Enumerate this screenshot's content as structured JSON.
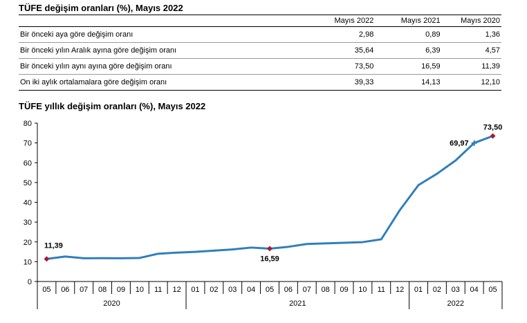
{
  "table": {
    "title": "TÜFE değişim oranları (%), Mayıs 2022",
    "columns": [
      "Mayıs 2022",
      "Mayıs 2021",
      "Mayıs 2020"
    ],
    "rows": [
      {
        "label": "Bir önceki aya göre değişim oranı",
        "values": [
          "2,98",
          "0,89",
          "1,36"
        ]
      },
      {
        "label": "Bir önceki yılın Aralık ayına göre değişim oranı",
        "values": [
          "35,64",
          "6,39",
          "4,57"
        ]
      },
      {
        "label": "Bir önceki yılın aynı ayına göre değişim oranı",
        "values": [
          "73,50",
          "16,59",
          "11,39"
        ]
      },
      {
        "label": "On iki aylık ortalamalara göre değişim oranı",
        "values": [
          "39,33",
          "14,13",
          "12,10"
        ]
      }
    ]
  },
  "chart_data": {
    "type": "line",
    "title": "TÜFE yıllık değişim oranları (%), Mayıs 2022",
    "categories": [
      "05",
      "06",
      "07",
      "08",
      "09",
      "10",
      "11",
      "12",
      "01",
      "02",
      "03",
      "04",
      "05",
      "06",
      "07",
      "08",
      "09",
      "10",
      "11",
      "12",
      "01",
      "02",
      "03",
      "04",
      "05"
    ],
    "years": [
      {
        "label": "2020",
        "count": 8
      },
      {
        "label": "2021",
        "count": 12
      },
      {
        "label": "2022",
        "count": 5
      }
    ],
    "values": [
      11.39,
      12.62,
      11.76,
      11.77,
      11.75,
      11.89,
      14.03,
      14.6,
      14.97,
      15.61,
      16.19,
      17.14,
      16.59,
      17.53,
      18.95,
      19.25,
      19.58,
      19.89,
      21.31,
      36.08,
      48.69,
      54.44,
      61.14,
      69.97,
      73.5
    ],
    "ylim": [
      0,
      80
    ],
    "yticks": [
      0,
      10,
      20,
      30,
      40,
      50,
      60,
      70,
      80
    ],
    "markers": [
      {
        "index": 0,
        "label": "11,39",
        "shape": "diamond"
      },
      {
        "index": 12,
        "label": "16,59",
        "shape": "diamond"
      },
      {
        "index": 23,
        "label": "69,97",
        "shape": "plus"
      },
      {
        "index": 24,
        "label": "73,50",
        "shape": "diamond"
      }
    ],
    "line_color": "#2e7fbd",
    "marker_color": "#a51c3a",
    "grid": false
  }
}
